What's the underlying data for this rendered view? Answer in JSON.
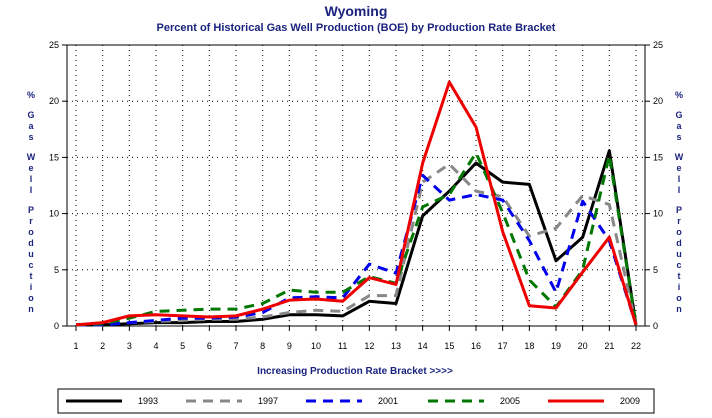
{
  "chart_data": {
    "type": "line",
    "title": "Wyoming",
    "subtitle": "Percent of Historical Gas Well Production (BOE) by Production Rate Bracket",
    "xlabel": "Increasing Production Rate Bracket >>>>",
    "ylabel": "% Gas Well Production",
    "x": [
      1,
      2,
      3,
      4,
      5,
      6,
      7,
      8,
      9,
      10,
      11,
      12,
      13,
      14,
      15,
      16,
      17,
      18,
      19,
      20,
      21,
      22
    ],
    "ylim": [
      0,
      25
    ],
    "yticks": [
      0,
      5,
      10,
      15,
      20,
      25
    ],
    "grid": true,
    "legend_position": "bottom",
    "series": [
      {
        "name": "1993",
        "color": "#000000",
        "dash": "solid",
        "values": [
          0.1,
          0.1,
          0.2,
          0.3,
          0.3,
          0.4,
          0.4,
          0.6,
          1.0,
          1.0,
          0.9,
          2.2,
          2.0,
          9.8,
          12.0,
          14.5,
          12.8,
          12.6,
          5.8,
          7.9,
          15.6,
          0.1
        ]
      },
      {
        "name": "1997",
        "color": "#888888",
        "dash": "dashed",
        "values": [
          0.1,
          0.1,
          0.3,
          0.4,
          0.5,
          0.6,
          0.6,
          0.8,
          1.2,
          1.4,
          1.3,
          2.7,
          2.7,
          12.8,
          14.4,
          12.0,
          11.5,
          8.0,
          8.7,
          11.6,
          10.8,
          0.1
        ]
      },
      {
        "name": "2001",
        "color": "#0000ee",
        "dash": "dashed",
        "values": [
          0.1,
          0.1,
          0.3,
          0.5,
          0.7,
          0.7,
          0.8,
          1.2,
          2.5,
          2.6,
          2.5,
          5.5,
          4.7,
          13.4,
          11.2,
          11.7,
          11.2,
          7.6,
          3.0,
          11.1,
          7.6,
          0.1
        ]
      },
      {
        "name": "2005",
        "color": "#007700",
        "dash": "dashed",
        "values": [
          0.1,
          0.2,
          0.7,
          1.3,
          1.4,
          1.5,
          1.5,
          2.0,
          3.2,
          3.0,
          3.0,
          4.4,
          3.8,
          10.6,
          11.7,
          15.4,
          10.1,
          4.1,
          1.7,
          5.0,
          15.2,
          0.1
        ]
      },
      {
        "name": "2009",
        "color": "#ee0000",
        "dash": "solid",
        "values": [
          0.1,
          0.3,
          0.9,
          1.0,
          0.9,
          0.8,
          0.9,
          1.5,
          2.3,
          2.4,
          2.2,
          4.3,
          3.7,
          14.5,
          21.7,
          17.7,
          8.4,
          1.8,
          1.6,
          4.8,
          7.9,
          0.1
        ]
      }
    ]
  }
}
